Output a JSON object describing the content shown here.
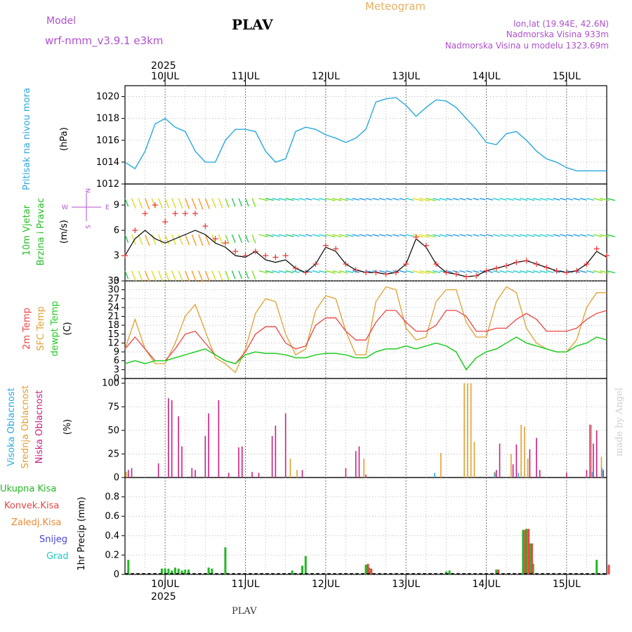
{
  "header": {
    "model_label": "Model",
    "model_name": "wrf-nmm_v3.9.1  e3km",
    "station": "PLAV",
    "product": "Meteogram",
    "lonlat": "lon,lat (19.94E, 42.6N)",
    "elevation": "Nadmorska Visina 933m",
    "model_elevation": "Nadmorska Visina u modelu 1323.69m",
    "footer_station": "PLAV",
    "watermark": "made by Angel",
    "year": "2025"
  },
  "colors": {
    "pressure": "#29a9e0",
    "wind_green": "#22c022",
    "wind_axis_purple": "#b050d0",
    "temp2m": "#ee4444",
    "sfc": "#e0a030",
    "dew": "#22cc22",
    "cloud_high": "#29a9e0",
    "cloud_mid": "#e0a030",
    "cloud_low": "#cc1f80",
    "rain_total": "#22b822",
    "rain_conv": "#ee4444",
    "rain_frozen": "#ee8833",
    "snow": "#4444dd",
    "hail": "#22cccc",
    "grid": "#999999"
  },
  "chart_data": [
    {
      "type": "line",
      "name": "pressure",
      "ylabel_side": "Pritisak na nivou mora",
      "ylabel_unit": "(hPa)",
      "ylim": [
        1012,
        1021
      ],
      "yticks": [
        "1012",
        "1014",
        "1016",
        "1018",
        "1020"
      ],
      "x_hours": [
        0,
        3,
        6,
        9,
        12,
        15,
        18,
        21,
        24,
        27,
        30,
        33,
        36,
        39,
        42,
        45,
        48,
        51,
        54,
        57,
        60,
        63,
        66,
        69,
        72,
        75,
        78,
        81,
        84,
        87,
        90,
        93,
        96,
        99,
        102,
        105,
        108,
        111,
        114,
        117,
        120,
        123,
        126,
        129,
        132,
        135,
        138,
        141,
        144
      ],
      "values": [
        1014,
        1013.4,
        1015,
        1017.5,
        1018,
        1017.2,
        1016.8,
        1015,
        1014,
        1014,
        1016,
        1017,
        1017,
        1016.8,
        1015,
        1014,
        1014.3,
        1016.8,
        1017.2,
        1017,
        1016.5,
        1016.2,
        1015.8,
        1016.2,
        1017,
        1019.5,
        1019.8,
        1019.9,
        1019.2,
        1018.2,
        1019,
        1019.7,
        1019.6,
        1019,
        1018,
        1017,
        1015.8,
        1015.6,
        1016.6,
        1016.8,
        1016,
        1015,
        1014.3,
        1014,
        1013.5,
        1013.2,
        1013.2,
        1013.2,
        1013.2
      ]
    },
    {
      "type": "line",
      "name": "wind",
      "ylabel_side_1": "10m Vjetar",
      "ylabel_side_2": "Brzina i Pravac",
      "ylabel_unit": "(m/s)",
      "compass": {
        "n": "N",
        "e": "E",
        "w": "W",
        "s": "S"
      },
      "ylim": [
        0,
        11.5
      ],
      "yticks": [
        "0",
        "3",
        "6",
        "9"
      ],
      "x_hours": [
        0,
        3,
        6,
        9,
        12,
        15,
        18,
        21,
        24,
        27,
        30,
        33,
        36,
        39,
        42,
        45,
        48,
        51,
        54,
        57,
        60,
        63,
        66,
        69,
        72,
        75,
        78,
        81,
        84,
        87,
        90,
        93,
        96,
        99,
        102,
        105,
        108,
        111,
        114,
        117,
        120,
        123,
        126,
        129,
        132,
        135,
        138,
        141,
        144
      ],
      "speed": [
        3,
        5,
        6,
        5,
        4.5,
        5,
        5.5,
        6,
        5.5,
        4.5,
        4,
        3,
        2.8,
        3.5,
        2.5,
        2.2,
        2.5,
        1.5,
        1,
        2,
        4,
        3.5,
        2,
        1.3,
        1,
        1,
        0.8,
        1,
        2,
        5,
        4,
        2,
        1,
        0.8,
        0.5,
        0.6,
        1.2,
        1.5,
        1.8,
        2.2,
        2.4,
        2,
        1.6,
        1.2,
        1,
        1.2,
        2,
        3.5,
        2.8
      ],
      "gust": [
        3,
        6,
        8,
        9,
        7,
        8,
        8,
        8,
        6.5,
        5,
        4.5,
        3.5,
        3,
        3.5,
        3,
        2.8,
        3,
        1.5,
        1,
        2,
        4.2,
        3.8,
        2,
        1.3,
        1,
        1,
        0.8,
        1,
        2,
        5.2,
        4.2,
        2,
        1,
        0.8,
        0.5,
        0.6,
        1.2,
        1.5,
        1.8,
        2.2,
        2.4,
        2,
        1.6,
        1.2,
        1,
        1.2,
        2,
        3.8,
        3
      ]
    },
    {
      "type": "line",
      "name": "temperature",
      "ylabel_1": "2m Temp",
      "ylabel_2": "SFC Temp",
      "ylabel_3": "dewpt Temp",
      "ylabel_unit": "(C)",
      "ylim": [
        0,
        33
      ],
      "yticks": [
        "0",
        "3",
        "6",
        "9",
        "12",
        "15",
        "18",
        "21",
        "24",
        "27",
        "30",
        "33"
      ],
      "x_hours": [
        0,
        3,
        6,
        9,
        12,
        15,
        18,
        21,
        24,
        27,
        30,
        33,
        36,
        39,
        42,
        45,
        48,
        51,
        54,
        57,
        60,
        63,
        66,
        69,
        72,
        75,
        78,
        81,
        84,
        87,
        90,
        93,
        96,
        99,
        102,
        105,
        108,
        111,
        114,
        117,
        120,
        123,
        126,
        129,
        132,
        135,
        138,
        141,
        144
      ],
      "t2m": [
        10,
        14,
        10,
        6,
        6,
        10,
        15,
        16,
        12,
        8,
        6,
        5,
        9,
        15,
        17.5,
        17.5,
        12,
        10,
        11,
        18,
        20.5,
        20.5,
        16,
        13,
        13,
        19,
        23,
        23,
        19,
        16,
        16,
        18,
        23,
        23,
        21,
        16,
        16,
        17,
        17,
        20,
        22,
        20,
        16,
        16,
        16,
        17,
        20,
        22,
        23
      ],
      "sfc": [
        10,
        20,
        10,
        5,
        5,
        12,
        21,
        25,
        16,
        7,
        5,
        2,
        10,
        22,
        27,
        26,
        15,
        8,
        10,
        23,
        28,
        27,
        16,
        8,
        8,
        26,
        31,
        30,
        17,
        13,
        14,
        26,
        30,
        30,
        19,
        14,
        14,
        26,
        31,
        29,
        17,
        12,
        10,
        9,
        9,
        13,
        24,
        29,
        29
      ],
      "dew": [
        5,
        6,
        5,
        6,
        6,
        7,
        8,
        9,
        10,
        8,
        6,
        5,
        8,
        9,
        8.5,
        8.5,
        8,
        7,
        7,
        8,
        8.5,
        8.5,
        8,
        7,
        7,
        9,
        10,
        10,
        11,
        10,
        11,
        12,
        11,
        9,
        3,
        7,
        9,
        10,
        12,
        14,
        12,
        11,
        10,
        9,
        9,
        11,
        12,
        14,
        13
      ]
    },
    {
      "type": "bar",
      "name": "clouds",
      "ylabel_1": "Visoka Oblacnost",
      "ylabel_2": "Srednja Oblacnost",
      "ylabel_3": "Niska Oblacnost",
      "ylabel_unit": "(%)",
      "ylim": [
        0,
        105
      ],
      "yticks": [
        "0",
        "25",
        "50",
        "75",
        "100"
      ],
      "low": [
        [
          1,
          8
        ],
        [
          2,
          10
        ],
        [
          10,
          15
        ],
        [
          13,
          84
        ],
        [
          14,
          82
        ],
        [
          16,
          65
        ],
        [
          17,
          33
        ],
        [
          20,
          10
        ],
        [
          21,
          8
        ],
        [
          24,
          44
        ],
        [
          25,
          68
        ],
        [
          28,
          82
        ],
        [
          31,
          5
        ],
        [
          34,
          32
        ],
        [
          35,
          33
        ],
        [
          38,
          6
        ],
        [
          40,
          5
        ],
        [
          44,
          44
        ],
        [
          45,
          55
        ],
        [
          48,
          68
        ],
        [
          53,
          8
        ],
        [
          66,
          10
        ],
        [
          69,
          28
        ],
        [
          70,
          33
        ],
        [
          72,
          3
        ],
        [
          111,
          8
        ],
        [
          112,
          36
        ],
        [
          116,
          14
        ],
        [
          117,
          35
        ],
        [
          121,
          30
        ],
        [
          123,
          42
        ],
        [
          124,
          8
        ],
        [
          132,
          5
        ],
        [
          138,
          8
        ],
        [
          139,
          56
        ],
        [
          140,
          36
        ],
        [
          141,
          50
        ],
        [
          143,
          8
        ]
      ],
      "mid": [
        [
          0,
          6
        ],
        [
          49,
          20
        ],
        [
          51,
          8
        ],
        [
          71,
          20
        ],
        [
          94,
          26
        ],
        [
          101,
          100
        ],
        [
          102,
          100
        ],
        [
          103,
          100
        ],
        [
          104,
          38
        ],
        [
          110,
          6
        ],
        [
          115,
          25
        ],
        [
          118,
          56
        ],
        [
          119,
          54
        ],
        [
          120,
          20
        ],
        [
          139,
          56
        ],
        [
          142,
          22
        ]
      ],
      "high": [
        [
          93,
          5
        ],
        [
          111,
          5
        ],
        [
          118,
          5
        ],
        [
          140,
          6
        ],
        [
          143,
          10
        ]
      ]
    },
    {
      "type": "bar",
      "name": "precip",
      "ylabel_unit": "1hr Precip (mm)",
      "legend": [
        "Ukupna Kisa",
        "Konvek.Kisa",
        "Zaledj.Kisa",
        "Snijeg",
        "Grad"
      ],
      "ylim": [
        0,
        1.0
      ],
      "yticks": [
        "0",
        "0.2",
        "0.4",
        "0.6",
        "0.8"
      ],
      "total": [
        [
          1,
          0.15
        ],
        [
          11,
          0.06
        ],
        [
          12,
          0.06
        ],
        [
          13,
          0.06
        ],
        [
          14,
          0.04
        ],
        [
          15,
          0.07
        ],
        [
          16,
          0.06
        ],
        [
          17,
          0.04
        ],
        [
          18,
          0.05
        ],
        [
          19,
          0.05
        ],
        [
          25,
          0.07
        ],
        [
          26,
          0.06
        ],
        [
          30,
          0.28
        ],
        [
          50,
          0.04
        ],
        [
          53,
          0.09
        ],
        [
          54,
          0.19
        ],
        [
          72,
          0.1
        ],
        [
          73,
          0.07
        ],
        [
          96,
          0.03
        ],
        [
          97,
          0.04
        ],
        [
          111,
          0.05
        ],
        [
          119,
          0.46
        ],
        [
          120,
          0.47
        ],
        [
          121,
          0.32
        ],
        [
          122,
          0.11
        ],
        [
          141,
          0.15
        ]
      ],
      "conv": [
        [
          72,
          0.11
        ],
        [
          73,
          0.06
        ],
        [
          111,
          0.05
        ],
        [
          119,
          0.46
        ],
        [
          120,
          0.47
        ],
        [
          121,
          0.32
        ],
        [
          144,
          0.1
        ]
      ]
    }
  ],
  "x_axis": {
    "day_labels": [
      "10JUL",
      "11JUL",
      "12JUL",
      "13JUL",
      "14JUL",
      "15JUL"
    ],
    "day_offsets_h": [
      12,
      36,
      60,
      84,
      108,
      132
    ],
    "total_hours": 144
  }
}
